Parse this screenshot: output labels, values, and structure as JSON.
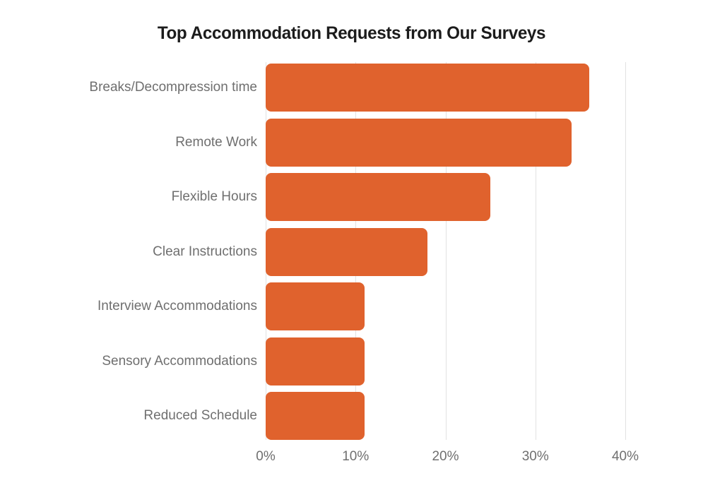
{
  "page": {
    "background_color": "#ffffff"
  },
  "chart_data": {
    "type": "bar",
    "orientation": "horizontal",
    "title": "Top Accommodation Requests from Our Surveys",
    "categories": [
      "Breaks/Decompression time",
      "Remote Work",
      "Flexible Hours",
      "Clear Instructions",
      "Interview Accommodations",
      "Sensory Accommodations",
      "Reduced Schedule"
    ],
    "values": [
      36,
      34,
      25,
      18,
      11,
      11,
      11
    ],
    "unit": "%",
    "xlabel": "",
    "ylabel": "",
    "x_ticks": [
      {
        "value": 0,
        "label": "0%"
      },
      {
        "value": 10,
        "label": "10%"
      },
      {
        "value": 20,
        "label": "20%"
      },
      {
        "value": 30,
        "label": "30%"
      },
      {
        "value": 40,
        "label": "40%"
      }
    ],
    "xlim": [
      0,
      45
    ],
    "grid": "vertical-only",
    "legend": "none",
    "data_labels": "none",
    "colors": {
      "bar": "#e0622d",
      "gridline": "#e2e2e2",
      "axis_label": "#6f6f6f",
      "category_label": "#6f6f6f",
      "title": "#1c1c1c"
    }
  }
}
